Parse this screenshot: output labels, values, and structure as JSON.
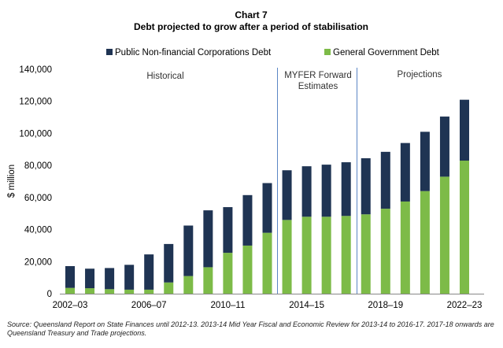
{
  "chart_data": {
    "type": "bar",
    "stacked": true,
    "title": "Chart 7",
    "subtitle": "Debt projected to grow after a period of stabilisation",
    "ylabel": "$ million",
    "xlabel": "",
    "ylim": [
      0,
      140000
    ],
    "yticks": [
      "0",
      "20,000",
      "40,000",
      "60,000",
      "80,000",
      "100,000",
      "120,000",
      "140,000"
    ],
    "xtick_labels": [
      "2002–03",
      "2006–07",
      "2010–11",
      "2014–15",
      "2018–19",
      "2022–23"
    ],
    "categories": [
      "2002–03",
      "2003–04",
      "2004–05",
      "2005–06",
      "2006–07",
      "2007–08",
      "2008–09",
      "2009–10",
      "2010–11",
      "2011–12",
      "2012–13",
      "2013–14",
      "2014–15",
      "2015–16",
      "2016–17",
      "2017–18",
      "2018–19",
      "2019–20",
      "2020–21",
      "2021–22",
      "2022–23"
    ],
    "series": [
      {
        "name": "General Government Debt",
        "color": "#7dbb48",
        "values": [
          3600,
          3400,
          2800,
          2500,
          2500,
          7000,
          11000,
          16500,
          25500,
          30000,
          38000,
          46000,
          48000,
          48000,
          48500,
          49500,
          53000,
          57500,
          64000,
          73000,
          83000
        ]
      },
      {
        "name": "Public Non-financial Corporations Debt",
        "color": "#1f3453",
        "values": [
          13600,
          12200,
          13200,
          15500,
          22000,
          24000,
          31500,
          35500,
          28500,
          31500,
          31000,
          31000,
          31500,
          32500,
          33500,
          35000,
          35500,
          36500,
          37000,
          37500,
          38000
        ]
      }
    ],
    "legend": "top",
    "grid": false,
    "period_labels": [
      "Historical",
      "MYFER Forward Estimates",
      "Projections"
    ]
  },
  "source": "Source: Queensland Report on State Finances until 2012-13. 2013-14 Mid Year Fiscal and Economic Review for 2013-14 to 2016-17.  2017-18 onwards are Queensland Treasury and Trade projections."
}
